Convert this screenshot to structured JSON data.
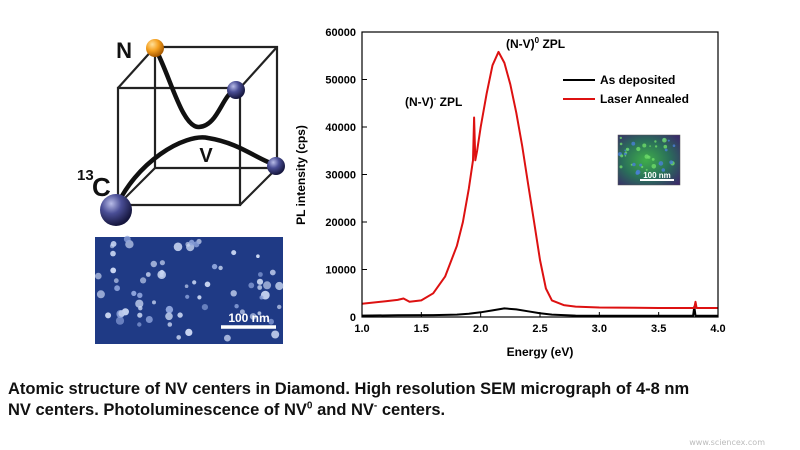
{
  "structure": {
    "label_n": "N",
    "label_c_super": "13",
    "label_c": "C",
    "label_v": "V"
  },
  "sem": {
    "scale_label": "100 nm"
  },
  "inset": {
    "scale_label": "100 nm"
  },
  "chart_data": {
    "type": "line",
    "xlabel": "Energy (eV)",
    "ylabel": "PL intensity (cps)",
    "xlim": [
      1.0,
      4.0
    ],
    "ylim": [
      0,
      60000
    ],
    "xticks": [
      "1.0",
      "1.5",
      "2.0",
      "2.5",
      "3.0",
      "3.5",
      "4.0"
    ],
    "yticks": [
      "0",
      "10000",
      "20000",
      "30000",
      "40000",
      "50000",
      "60000"
    ],
    "grid": false,
    "legend_position": "top-right",
    "series": [
      {
        "name": "As deposited",
        "color": "#000000",
        "x": [
          1.0,
          1.3,
          1.6,
          1.8,
          1.9,
          2.0,
          2.1,
          2.2,
          2.3,
          2.4,
          2.5,
          2.6,
          2.8,
          3.0,
          3.5,
          3.79,
          3.8,
          3.81,
          4.0
        ],
        "y": [
          300,
          350,
          400,
          500,
          700,
          1000,
          1400,
          1800,
          1600,
          1200,
          800,
          500,
          300,
          250,
          250,
          250,
          2200,
          250,
          250
        ]
      },
      {
        "name": "Laser Annealed",
        "color": "#dd1111",
        "x": [
          1.0,
          1.2,
          1.3,
          1.35,
          1.4,
          1.5,
          1.6,
          1.7,
          1.8,
          1.85,
          1.9,
          1.935,
          1.945,
          1.955,
          1.97,
          2.0,
          2.05,
          2.1,
          2.15,
          2.2,
          2.25,
          2.3,
          2.35,
          2.4,
          2.45,
          2.5,
          2.55,
          2.6,
          2.7,
          2.8,
          3.0,
          3.5,
          3.8,
          3.81,
          3.82,
          4.0
        ],
        "y": [
          2800,
          3300,
          3600,
          3900,
          3200,
          3500,
          5000,
          8500,
          15000,
          20000,
          27000,
          33000,
          42000,
          33000,
          35000,
          40000,
          47000,
          53000,
          55800,
          53500,
          49000,
          43000,
          36000,
          28000,
          20000,
          12000,
          6000,
          3500,
          2500,
          2200,
          2000,
          1900,
          1900,
          3200,
          1900,
          1900
        ]
      }
    ],
    "annotations": [
      {
        "text": "(N-V)",
        "sup": "-",
        "suffix": " ZPL",
        "x": 1.945,
        "y": 42000
      },
      {
        "text": "(N-V)",
        "sup": "0",
        "suffix": " ZPL",
        "x": 2.15,
        "y": 55800
      }
    ]
  },
  "caption": {
    "line1": "Atomic structure of NV centers in Diamond. High resolution SEM micrograph of 4-8 nm",
    "line2_pre": "NV centers. Photoluminescence of NV",
    "line2_sup1": "0",
    "line2_mid": " and NV",
    "line2_sup2": "-",
    "line2_post": " centers."
  },
  "watermark": "www.sciencex.com"
}
